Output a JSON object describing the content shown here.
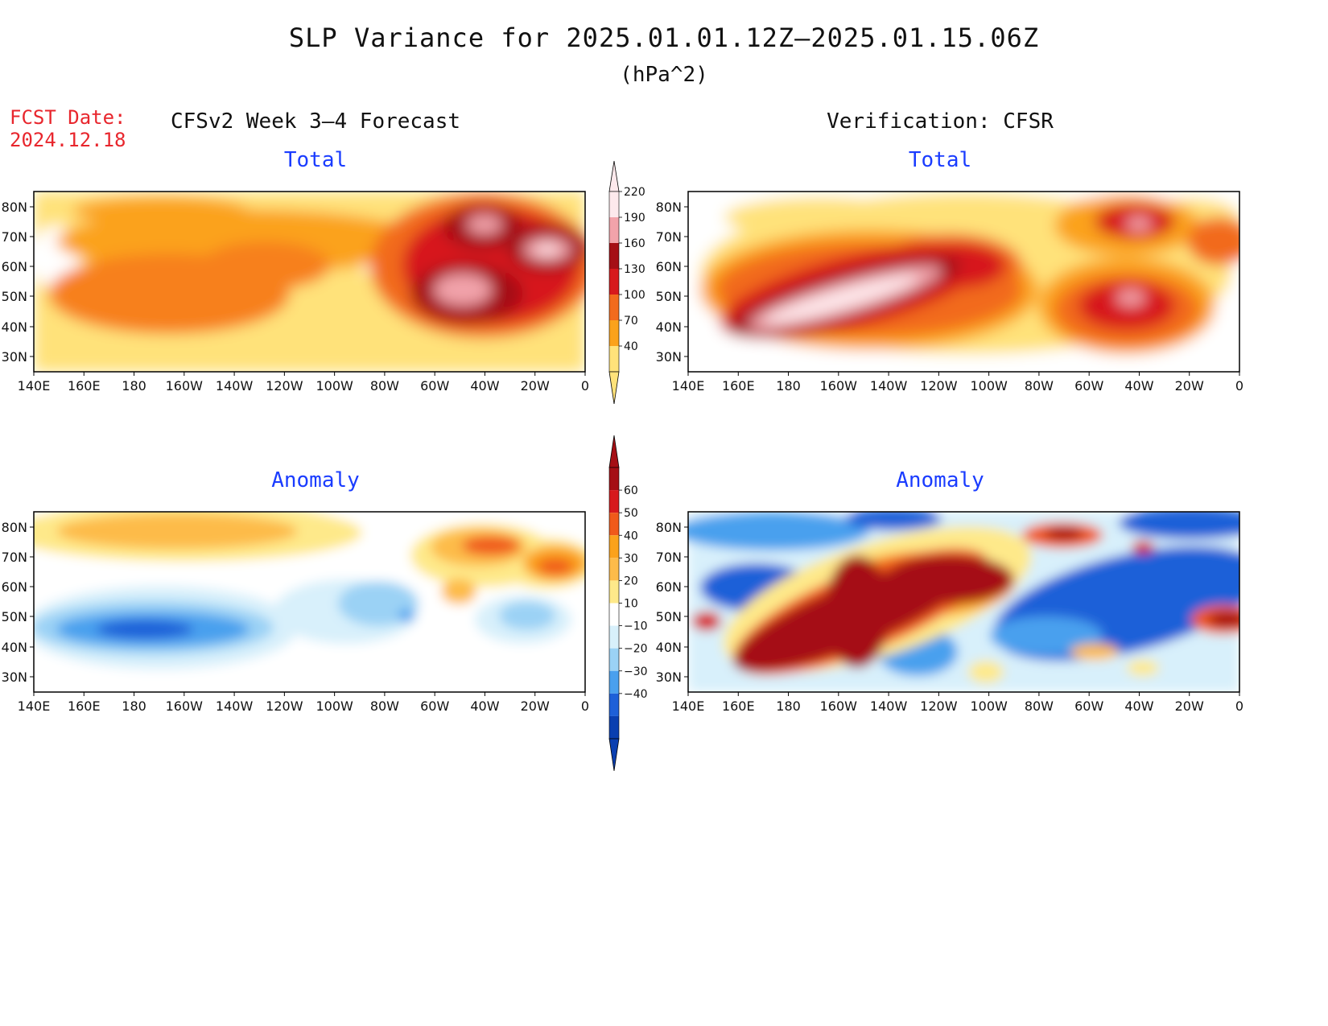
{
  "title": "SLP Variance for 2025.01.01.12Z–2025.01.15.06Z",
  "units": "(hPa^2)",
  "fcst_date_label": "FCST Date:",
  "fcst_date_value": "2024.12.18",
  "left_header": "CFSv2 Week 3–4 Forecast",
  "right_header": "Verification: CFSR",
  "panels": {
    "tl": {
      "label": "Total"
    },
    "tr": {
      "label": "Total"
    },
    "bl": {
      "label": "Anomaly"
    },
    "br": {
      "label": "Anomaly"
    }
  },
  "axes": {
    "lat_labels": [
      "80N",
      "70N",
      "60N",
      "50N",
      "40N",
      "30N"
    ],
    "lon_labels": [
      "140E",
      "160E",
      "180",
      "160W",
      "140W",
      "120W",
      "100W",
      "80W",
      "60W",
      "40W",
      "20W",
      "0"
    ]
  },
  "colorbar_total": {
    "labels": [
      "220",
      "190",
      "160",
      "130",
      "100",
      "70",
      "40"
    ],
    "colors": [
      "#fde9ec",
      "#f2a3aa",
      "#a50f15",
      "#d7191c",
      "#f26b1d",
      "#fba21b",
      "#ffe27a"
    ]
  },
  "colorbar_anomaly": {
    "labels": [
      "60",
      "50",
      "40",
      "30",
      "20",
      "10",
      "−10",
      "−20",
      "−30",
      "−40"
    ],
    "colors": [
      "#a50f15",
      "#d7191c",
      "#f05a1a",
      "#fba21b",
      "#fdbb4a",
      "#fee98a",
      "#ffffff",
      "#d8f0fb",
      "#9bd2f5",
      "#4aa0ee",
      "#1e60d8",
      "#0a3fb0"
    ]
  }
}
